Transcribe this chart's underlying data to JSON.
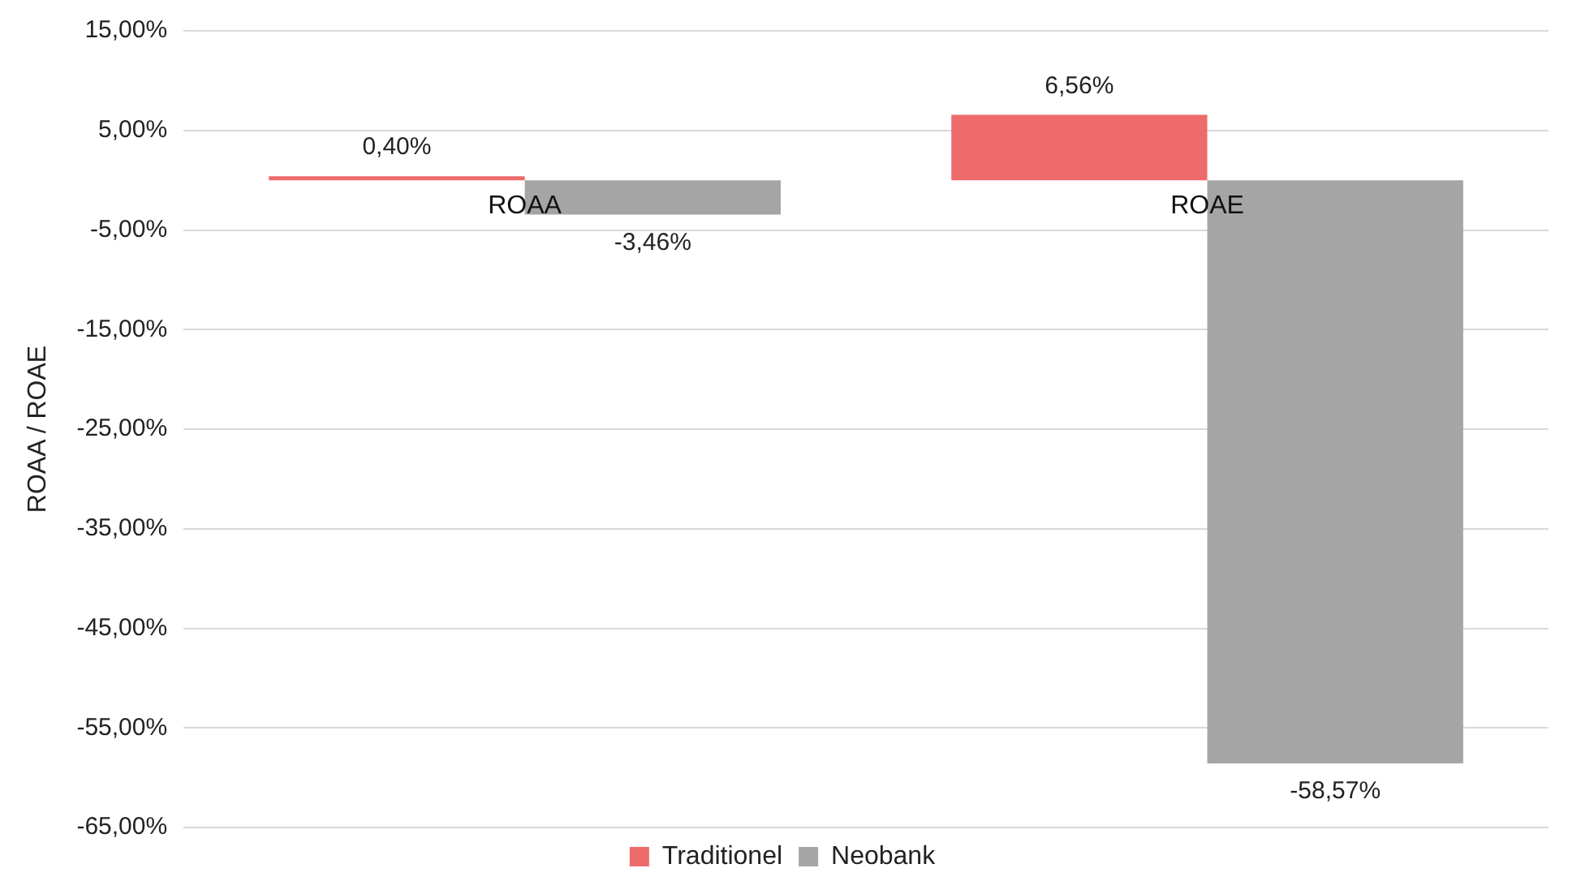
{
  "chart_data": {
    "type": "bar",
    "ylabel": "ROAA / ROAE",
    "categories": [
      "ROAA",
      "ROAE"
    ],
    "series": [
      {
        "name": "Traditionel",
        "color": "#ee6b6b",
        "values": [
          0.4,
          6.56
        ],
        "value_labels": [
          "0,40%",
          "6,56%"
        ]
      },
      {
        "name": "Neobank",
        "color": "#a5a5a5",
        "values": [
          -3.46,
          -58.57
        ],
        "value_labels": [
          "-3,46%",
          "-58,57%"
        ]
      }
    ],
    "ylim": [
      -65,
      15
    ],
    "yticks": [
      {
        "value": 15,
        "label": "15,00%"
      },
      {
        "value": 5,
        "label": "5,00%"
      },
      {
        "value": -5,
        "label": "-5,00%"
      },
      {
        "value": -15,
        "label": "-15,00%"
      },
      {
        "value": -25,
        "label": "-25,00%"
      },
      {
        "value": -35,
        "label": "-35,00%"
      },
      {
        "value": -45,
        "label": "-45,00%"
      },
      {
        "value": -55,
        "label": "-55,00%"
      },
      {
        "value": -65,
        "label": "-65,00%"
      }
    ],
    "grid": "y",
    "legend": "bottom"
  }
}
